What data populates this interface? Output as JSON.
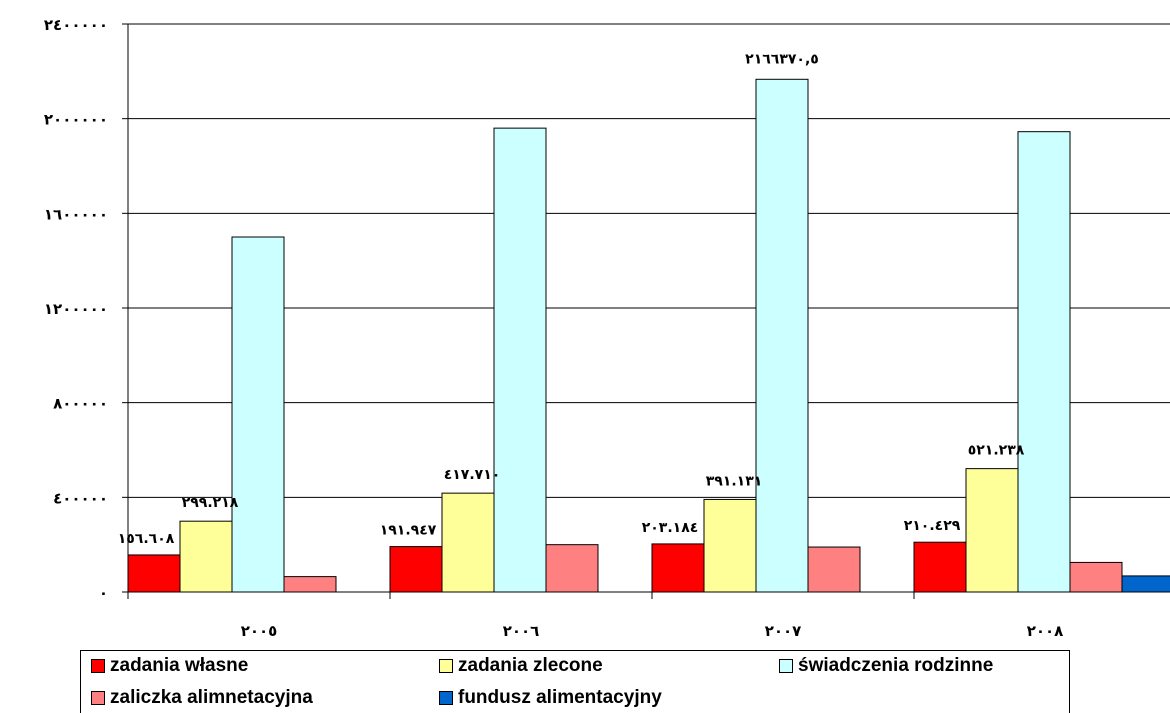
{
  "chart_data": {
    "type": "bar",
    "categories": [
      "٢٠٠٥",
      "٢٠٠٦",
      "٢٠٠٧",
      "٢٠٠٨"
    ],
    "ylim": [
      0,
      2400000
    ],
    "yticks": [
      0,
      400000,
      800000,
      1200000,
      1600000,
      2000000,
      2400000
    ],
    "ytick_labels": [
      "٠",
      "٤٠٠٠٠٠",
      "٨٠٠٠٠٠",
      "١٢٠٠٠٠٠",
      "١٦٠٠٠٠٠",
      "٢٠٠٠٠٠٠",
      "٢٤٠٠٠٠٠"
    ],
    "grid": true,
    "legend_position": "bottom",
    "series": [
      {
        "name": "zadania własne",
        "color": "#ff0000",
        "values": [
          156608,
          191947,
          203184,
          210429
        ],
        "labels": [
          "١٥٦.٦٠٨",
          "١٩١.٩٤٧",
          "٢٠٣.١٨٤",
          "٢١٠.٤٢٩"
        ]
      },
      {
        "name": "zadania zlecone",
        "color": "#ffff99",
        "values": [
          299218,
          417710,
          391131,
          521238
        ],
        "labels": [
          "٢٩٩.٢١٨",
          "٤١٧.٧١٠",
          "٣٩١.١٣١",
          "٥٢١.٢٣٨"
        ]
      },
      {
        "name": "świadczenia rodzinne",
        "color": "#ccffff",
        "values": [
          1500000,
          1960000,
          2166370.5,
          1945000
        ],
        "labels": [
          "",
          "",
          "٢١٦٦٣٧٠,٥",
          ""
        ]
      },
      {
        "name": "zaliczka alimnetacyjna",
        "color": "#ff8080",
        "values": [
          65000,
          200000,
          190000,
          125000
        ],
        "labels": [
          "",
          "",
          "",
          ""
        ]
      },
      {
        "name": "fundusz alimentacyjny",
        "color": "#0066cc",
        "values": [
          0,
          0,
          0,
          68000
        ],
        "labels": [
          "",
          "",
          "",
          ""
        ]
      }
    ]
  },
  "legend": [
    {
      "label": "zadania własne",
      "color": "#ff0000"
    },
    {
      "label": "zadania zlecone",
      "color": "#ffff99"
    },
    {
      "label": "świadczenia rodzinne",
      "color": "#ccffff"
    },
    {
      "label": "zaliczka alimnetacyjna",
      "color": "#ff8080"
    },
    {
      "label": "fundusz alimentacyjny",
      "color": "#0066cc"
    }
  ]
}
